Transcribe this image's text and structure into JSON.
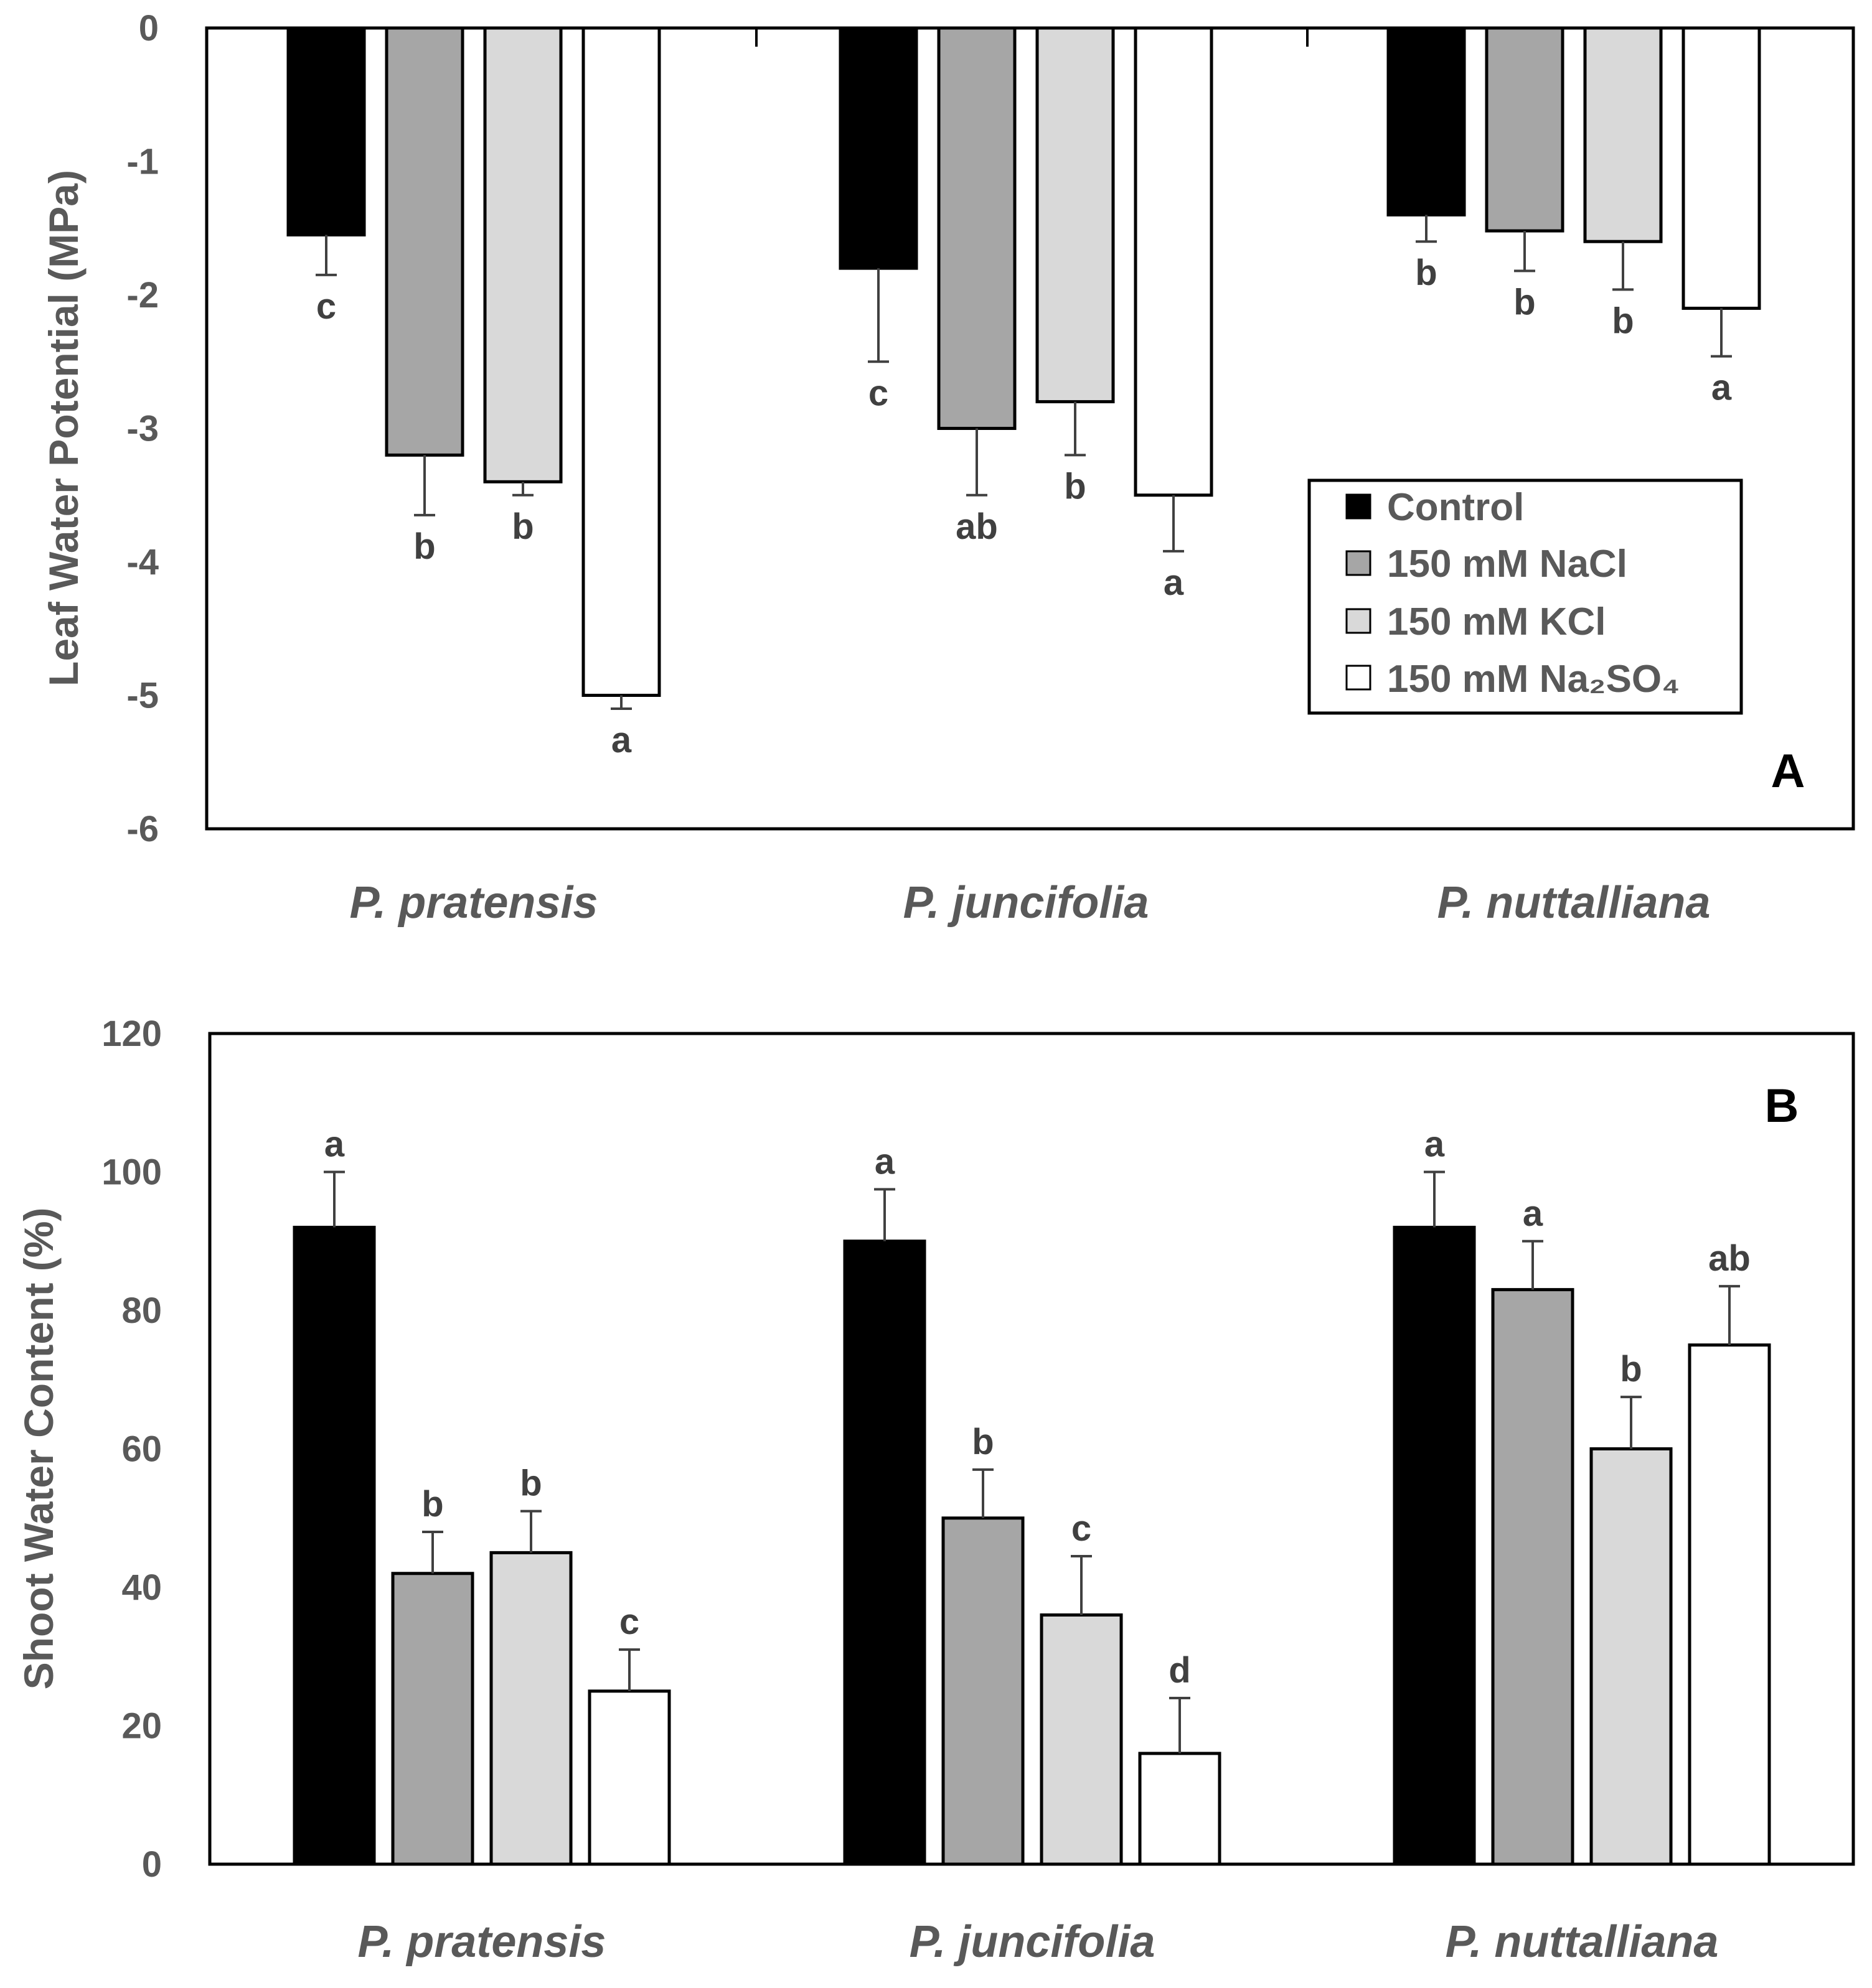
{
  "chart_data": [
    {
      "panel": "A",
      "type": "bar",
      "ylabel": "Leaf Water Potential (MPa)",
      "ylim": [
        -6,
        0
      ],
      "yticks": [
        "0",
        "-1",
        "-2",
        "-3",
        "-4",
        "-5",
        "-6"
      ],
      "ytick_values": [
        0,
        -1,
        -2,
        -3,
        -4,
        -5,
        -6
      ],
      "categories": [
        "P. pratensis",
        "P. juncifolia",
        "P. nuttalliana"
      ],
      "grid": false,
      "legend_position": "right",
      "series": [
        {
          "name": "Control",
          "values": [
            -1.55,
            -1.8,
            -1.4
          ],
          "errors": [
            0.3,
            0.7,
            0.2
          ],
          "letters": [
            "c",
            "c",
            "b"
          ]
        },
        {
          "name": "150 mM NaCl",
          "values": [
            -3.2,
            -3.0,
            -1.52
          ],
          "errors": [
            0.45,
            0.5,
            0.3
          ],
          "letters": [
            "b",
            "ab",
            "b"
          ]
        },
        {
          "name": "150 mM KCl",
          "values": [
            -3.4,
            -2.8,
            -1.6
          ],
          "errors": [
            0.1,
            0.4,
            0.36
          ],
          "letters": [
            "b",
            "b",
            "b"
          ]
        },
        {
          "name": "150 mM Na₂SO₄",
          "values": [
            -5.0,
            -3.5,
            -2.1
          ],
          "errors": [
            0.1,
            0.42,
            0.36
          ],
          "letters": [
            "a",
            "a",
            "a"
          ]
        }
      ]
    },
    {
      "panel": "B",
      "type": "bar",
      "ylabel": "Shoot Water Content (%)",
      "ylim": [
        0,
        120
      ],
      "yticks": [
        "0",
        "20",
        "40",
        "60",
        "80",
        "100",
        "120"
      ],
      "ytick_values": [
        0,
        20,
        40,
        60,
        80,
        100,
        120
      ],
      "categories": [
        "P. pratensis",
        "P. juncifolia",
        "P. nuttalliana"
      ],
      "grid": false,
      "series": [
        {
          "name": "Control",
          "values": [
            92,
            90,
            92
          ],
          "errors": [
            8,
            7.5,
            8
          ],
          "letters": [
            "a",
            "a",
            "a"
          ]
        },
        {
          "name": "150 mM NaCl",
          "values": [
            42,
            50,
            83
          ],
          "errors": [
            6,
            7,
            7
          ],
          "letters": [
            "b",
            "b",
            "a"
          ]
        },
        {
          "name": "150 mM KCl",
          "values": [
            45,
            36,
            60
          ],
          "errors": [
            6,
            8.5,
            7.5
          ],
          "letters": [
            "b",
            "c",
            "b"
          ]
        },
        {
          "name": "150 mM Na₂SO₄",
          "values": [
            25,
            16,
            75
          ],
          "errors": [
            6,
            8,
            8.5
          ],
          "letters": [
            "c",
            "d",
            "ab"
          ]
        }
      ]
    }
  ],
  "series_colors": [
    "#000000",
    "#a6a6a6",
    "#d9d9d9",
    "#ffffff"
  ]
}
